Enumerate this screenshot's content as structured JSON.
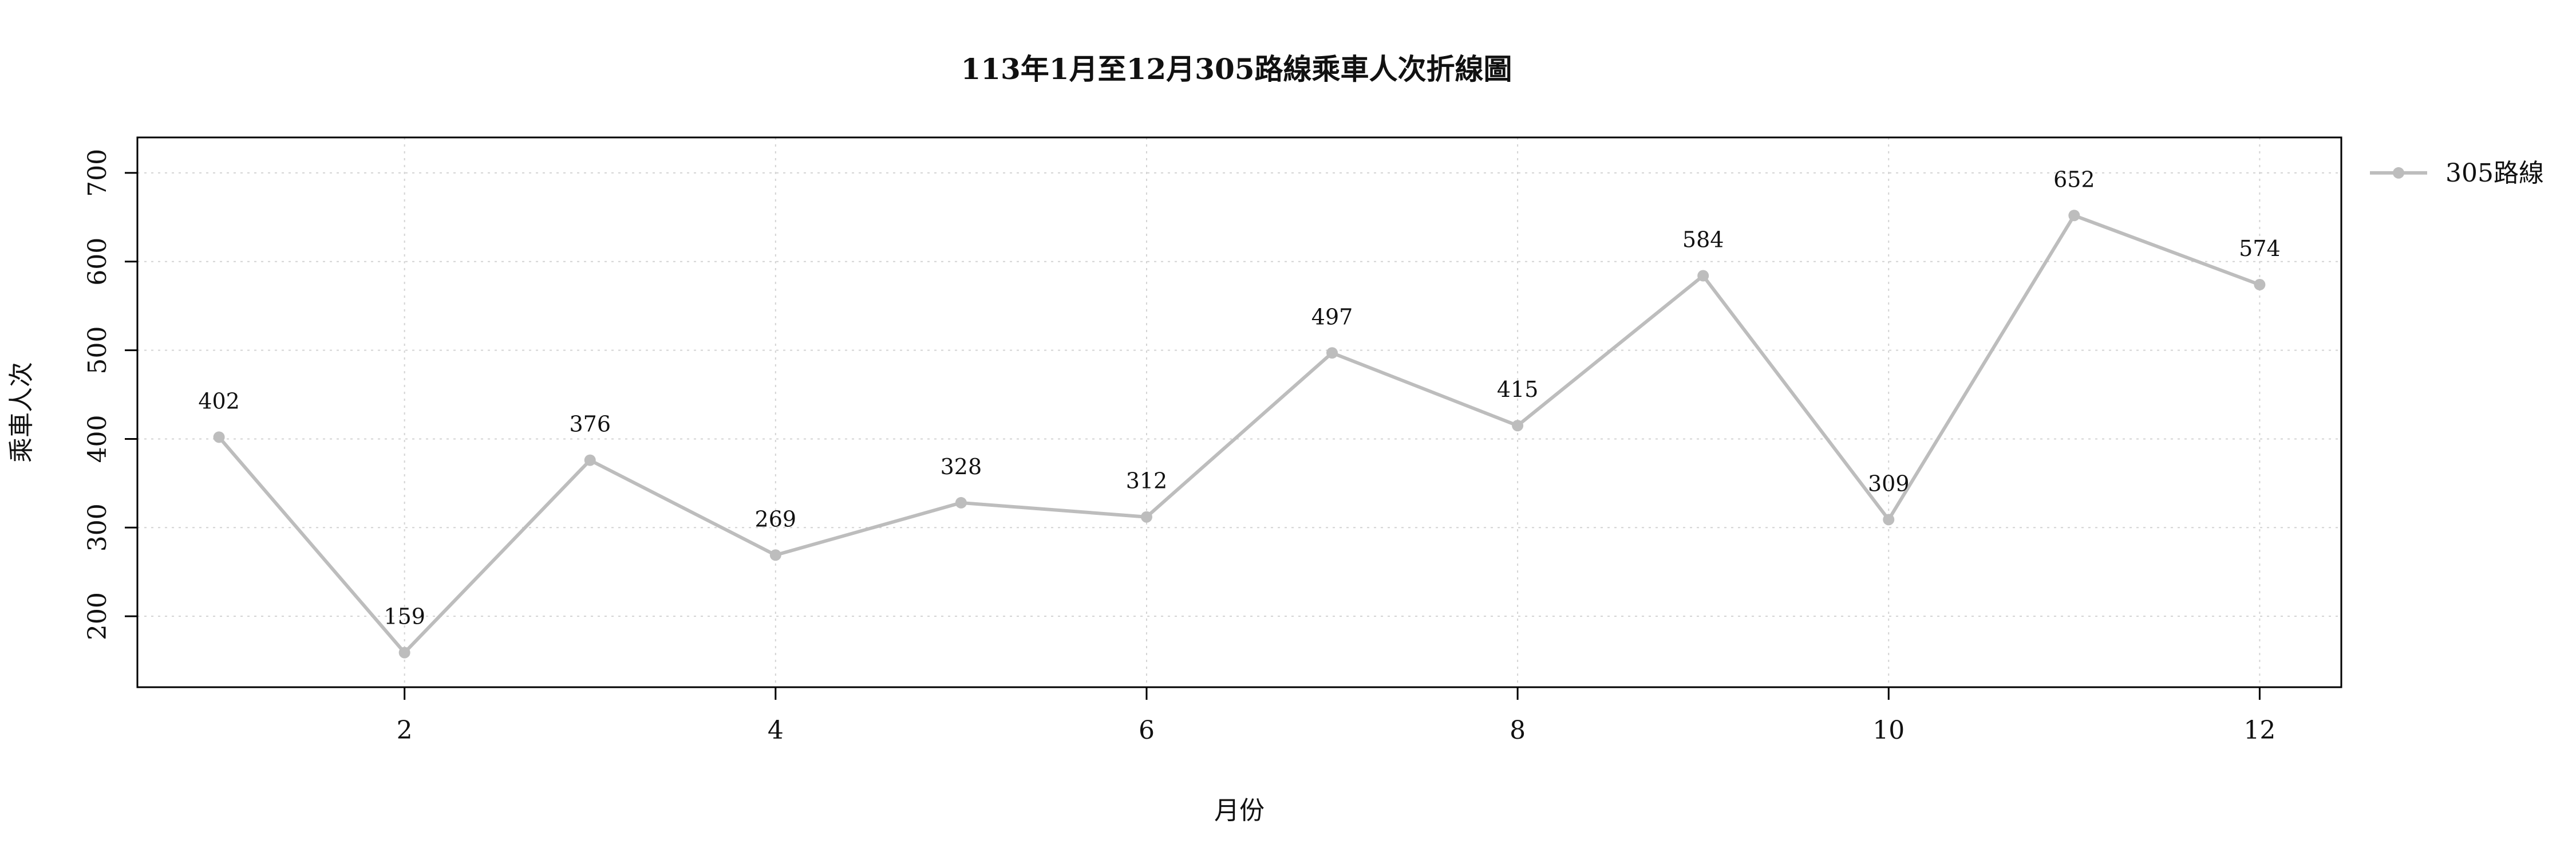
{
  "chart_data": {
    "type": "line",
    "title": "113年1月至12月305路線乘車人次折線圖",
    "xlabel": "月份",
    "ylabel": "乘車人次",
    "x": [
      1,
      2,
      3,
      4,
      5,
      6,
      7,
      8,
      9,
      10,
      11,
      12
    ],
    "xticks": [
      2,
      4,
      6,
      8,
      10,
      12
    ],
    "yticks": [
      200,
      300,
      400,
      500,
      600,
      700
    ],
    "xlim": [
      0.56,
      12.44
    ],
    "ylim": [
      120,
      740
    ],
    "grid": true,
    "legend_position": "top-right",
    "series": [
      {
        "name": "305路線",
        "color": "#bdbdbd",
        "values": [
          402,
          159,
          376,
          269,
          328,
          312,
          497,
          415,
          584,
          309,
          652,
          574
        ],
        "labels": [
          "402",
          "159",
          "376",
          "269",
          "328",
          "312",
          "497",
          "415",
          "584",
          "309",
          "652",
          "574"
        ]
      }
    ]
  }
}
